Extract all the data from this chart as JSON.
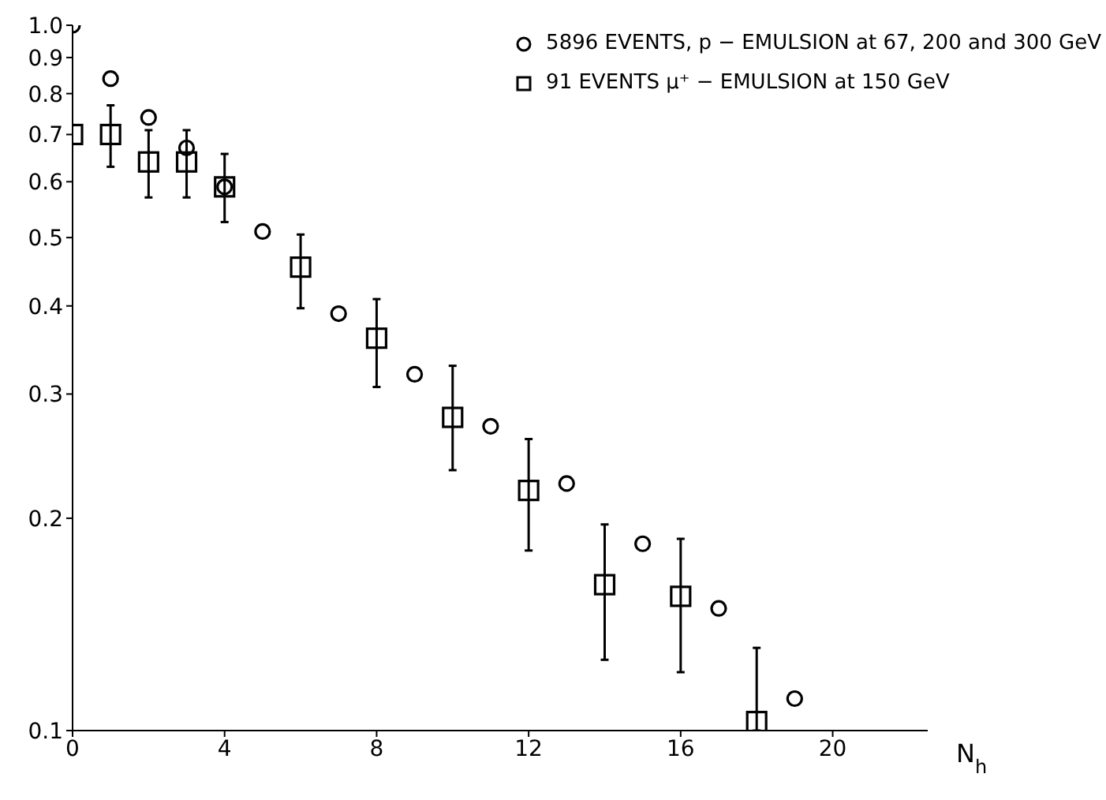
{
  "chart_data": {
    "type": "scatter",
    "xlabel": "N$_{h}$",
    "xlim": [
      0,
      22.5
    ],
    "xticks": [
      0,
      4,
      8,
      12,
      16,
      20
    ],
    "ylim": [
      0.1,
      1
    ],
    "log": "y",
    "yticks": [
      {
        "value": 0.1,
        "label": "0.1"
      },
      {
        "value": 0.2,
        "label": "0.2"
      },
      {
        "value": 0.3,
        "label": "0.3"
      },
      {
        "value": 0.4,
        "label": "0.4"
      },
      {
        "value": 0.5,
        "label": "0.5"
      },
      {
        "value": 0.6,
        "label": "0.6"
      },
      {
        "value": 0.7,
        "label": "0.7"
      },
      {
        "value": 0.8,
        "label": "0.8"
      },
      {
        "value": 0.9,
        "label": "0.9"
      },
      {
        "value": 1,
        "label": "1.0"
      }
    ],
    "grid": false,
    "legend": "top right",
    "series": [
      {
        "name": "5896 EVENTS, p − EMULSION at 67, 200 and 300 GeV",
        "color": "#000000",
        "marker": "circle",
        "x": [
          0,
          1,
          2,
          3,
          4,
          5,
          7,
          9,
          11,
          13,
          15,
          17,
          19
        ],
        "values": [
          1.0,
          0.84,
          0.74,
          0.67,
          0.59,
          0.51,
          0.39,
          0.32,
          0.27,
          0.224,
          0.184,
          0.149,
          0.111
        ]
      },
      {
        "name": "91 EVENTS μ⁺ − EMULSION at 150 GeV",
        "color": "#000000",
        "marker": "square",
        "x": [
          0,
          1,
          2,
          3,
          4,
          6,
          8,
          10,
          12,
          14,
          16,
          18
        ],
        "values": [
          0.7,
          0.7,
          0.64,
          0.64,
          0.59,
          0.454,
          0.36,
          0.278,
          0.219,
          0.161,
          0.155,
          0.103
        ],
        "errors": [
          null,
          [
            0.63,
            0.77
          ],
          [
            0.57,
            0.71
          ],
          [
            0.57,
            0.71
          ],
          [
            0.526,
            0.657
          ],
          [
            0.397,
            0.505
          ],
          [
            0.307,
            0.409
          ],
          [
            0.234,
            0.329
          ],
          [
            0.18,
            0.259
          ],
          [
            0.126,
            0.196
          ],
          [
            0.121,
            0.187
          ],
          [
            0.1,
            0.131
          ]
        ]
      }
    ]
  }
}
